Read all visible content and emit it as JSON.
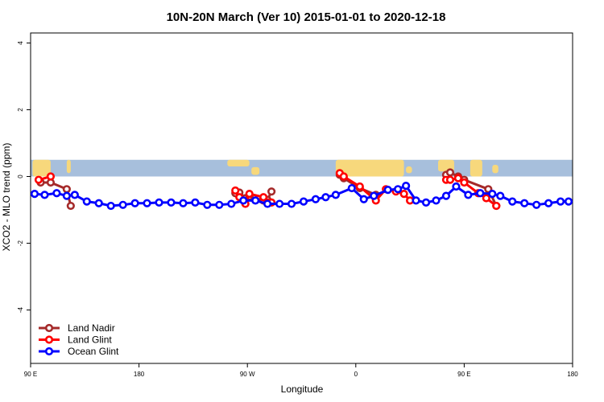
{
  "chart_data": {
    "type": "line",
    "title": "10N-20N March (Ver 10)   2015-01-01 to 2020-12-18",
    "xlabel": "Longitude",
    "ylabel": "XCO2 - MLO trend (ppm)",
    "xlim": [
      -90,
      180
    ],
    "ylim": [
      -5.6,
      4.3
    ],
    "x_ticks": [
      {
        "value": -90,
        "label": "90 E"
      },
      {
        "value": -36,
        "label": "180"
      },
      {
        "value": 18,
        "label": "90 W"
      },
      {
        "value": 72,
        "label": "0"
      },
      {
        "value": 126,
        "label": "90 E"
      },
      {
        "value": 180,
        "label": "180"
      }
    ],
    "y_ticks": [
      {
        "value": -4,
        "label": "-4"
      },
      {
        "value": -2,
        "label": "-2"
      },
      {
        "value": 0,
        "label": "0"
      },
      {
        "value": 2,
        "label": "2"
      },
      {
        "value": 4,
        "label": "4"
      }
    ],
    "map_band": {
      "ymin": 0,
      "ymax": 0.5,
      "ocean_color": "#a7bfdc",
      "land_color": "#f7d87c"
    },
    "legend_position": "bottom-left",
    "series": [
      {
        "name": "Land Nadir",
        "color": "#a52a2a",
        "segments": [
          {
            "x": [
              -85,
              -80,
              -72,
              -70
            ],
            "y": [
              -0.18,
              -0.18,
              -0.38,
              -0.88
            ]
          },
          {
            "x": [
              12,
              14,
              17,
              19,
              26,
              28,
              30
            ],
            "y": [
              -0.5,
              -0.48,
              -0.65,
              -0.6,
              -0.72,
              -0.7,
              -0.45
            ]
          },
          {
            "x": [
              64,
              66,
              74,
              82
            ],
            "y": [
              0.05,
              -0.05,
              -0.35,
              -0.55
            ]
          },
          {
            "x": [
              117,
              119,
              123,
              126,
              138,
              142
            ],
            "y": [
              0.05,
              0.12,
              0.0,
              -0.1,
              -0.38,
              -0.88
            ]
          }
        ]
      },
      {
        "name": "Land Glint",
        "color": "#ff0000",
        "segments": [
          {
            "x": [
              -86,
              -80
            ],
            "y": [
              -0.1,
              0.0
            ]
          },
          {
            "x": [
              12,
              14,
              17,
              19,
              26,
              28,
              30
            ],
            "y": [
              -0.42,
              -0.62,
              -0.82,
              -0.52,
              -0.62,
              -0.78,
              -0.78
            ]
          },
          {
            "x": [
              64,
              66,
              74,
              82,
              87,
              92,
              96,
              99
            ],
            "y": [
              0.1,
              0.0,
              -0.3,
              -0.72,
              -0.38,
              -0.45,
              -0.52,
              -0.72
            ]
          },
          {
            "x": [
              117,
              119,
              123,
              126,
              133,
              137,
              142
            ],
            "y": [
              -0.1,
              -0.1,
              -0.05,
              -0.18,
              -0.5,
              -0.65,
              -0.88
            ]
          }
        ]
      },
      {
        "name": "Ocean Glint",
        "color": "#0000ff",
        "segments": [
          {
            "x": [
              -88,
              -83,
              -77,
              -72,
              -68,
              -62,
              -56,
              -50,
              -44,
              -38,
              -32,
              -26,
              -20,
              -14,
              -8,
              -2,
              4,
              10,
              16,
              22,
              28,
              34,
              40,
              46,
              52,
              57,
              62,
              70,
              76,
              81,
              88,
              93,
              97,
              102,
              107,
              112,
              117,
              122,
              128,
              134,
              140,
              144,
              150,
              156,
              162,
              168,
              174,
              178
            ],
            "y": [
              -0.52,
              -0.55,
              -0.5,
              -0.58,
              -0.55,
              -0.75,
              -0.8,
              -0.88,
              -0.85,
              -0.8,
              -0.8,
              -0.78,
              -0.78,
              -0.8,
              -0.78,
              -0.85,
              -0.85,
              -0.82,
              -0.72,
              -0.72,
              -0.82,
              -0.82,
              -0.82,
              -0.75,
              -0.68,
              -0.62,
              -0.55,
              -0.35,
              -0.68,
              -0.58,
              -0.4,
              -0.38,
              -0.28,
              -0.72,
              -0.78,
              -0.72,
              -0.58,
              -0.3,
              -0.55,
              -0.5,
              -0.52,
              -0.58,
              -0.75,
              -0.8,
              -0.85,
              -0.8,
              -0.75,
              -0.75
            ]
          }
        ]
      }
    ],
    "land_regions": [
      {
        "x0": -89,
        "x1": -80,
        "y0": 0.0,
        "y1": 0.5
      },
      {
        "x0": -72,
        "x1": -70,
        "y0": 0.1,
        "y1": 0.5
      },
      {
        "x0": 8,
        "x1": 19,
        "y0": 0.3,
        "y1": 0.5
      },
      {
        "x0": 20,
        "x1": 24,
        "y0": 0.05,
        "y1": 0.28
      },
      {
        "x0": 62,
        "x1": 96,
        "y0": 0.0,
        "y1": 0.5
      },
      {
        "x0": 97,
        "x1": 100,
        "y0": 0.1,
        "y1": 0.3
      },
      {
        "x0": 113,
        "x1": 121,
        "y0": 0.15,
        "y1": 0.5
      },
      {
        "x0": 129,
        "x1": 135,
        "y0": 0.0,
        "y1": 0.5
      },
      {
        "x0": 140,
        "x1": 143,
        "y0": 0.1,
        "y1": 0.35
      }
    ]
  }
}
